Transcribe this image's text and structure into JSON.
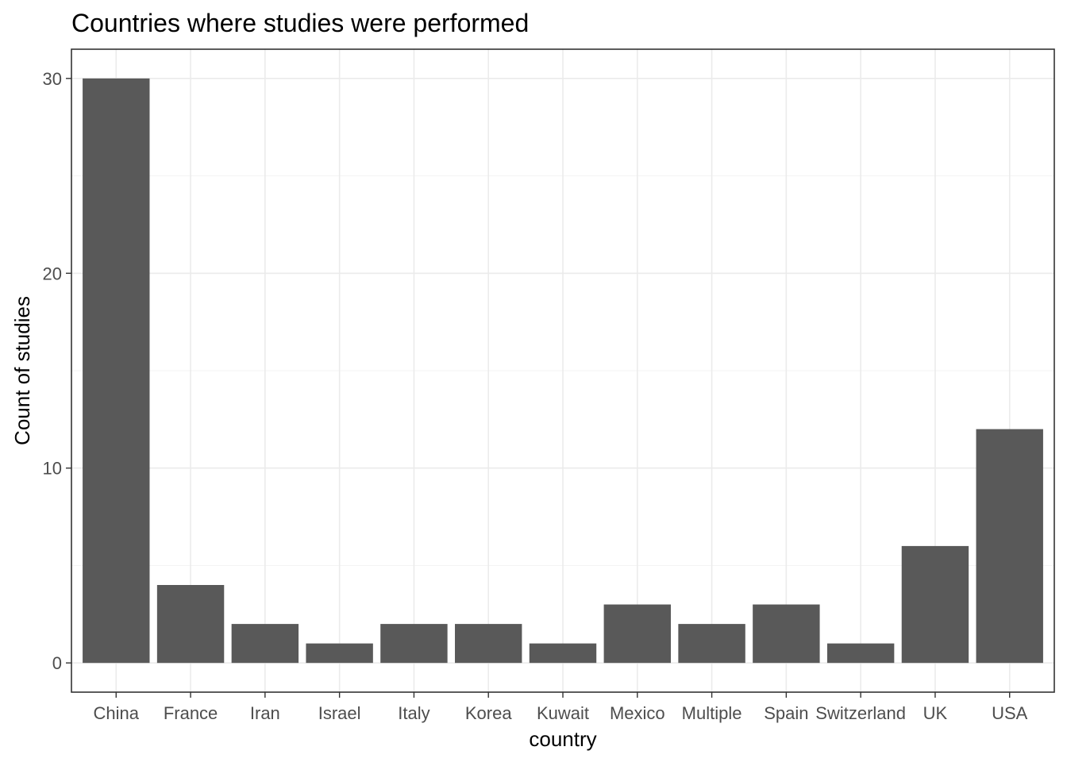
{
  "chart_data": {
    "type": "bar",
    "title": "Countries where studies were performed",
    "xlabel": "country",
    "ylabel": "Count of studies",
    "categories": [
      "China",
      "France",
      "Iran",
      "Israel",
      "Italy",
      "Korea",
      "Kuwait",
      "Mexico",
      "Multiple",
      "Spain",
      "Switzerland",
      "UK",
      "USA"
    ],
    "values": [
      30,
      4,
      2,
      1,
      2,
      2,
      1,
      3,
      2,
      3,
      1,
      6,
      12
    ],
    "ylim": [
      -1.5,
      31.5
    ],
    "yticks": [
      0,
      10,
      20,
      30
    ],
    "grid": true,
    "bar_color": "#595959",
    "grid_color": "#ebebeb",
    "border_color": "#333333"
  }
}
